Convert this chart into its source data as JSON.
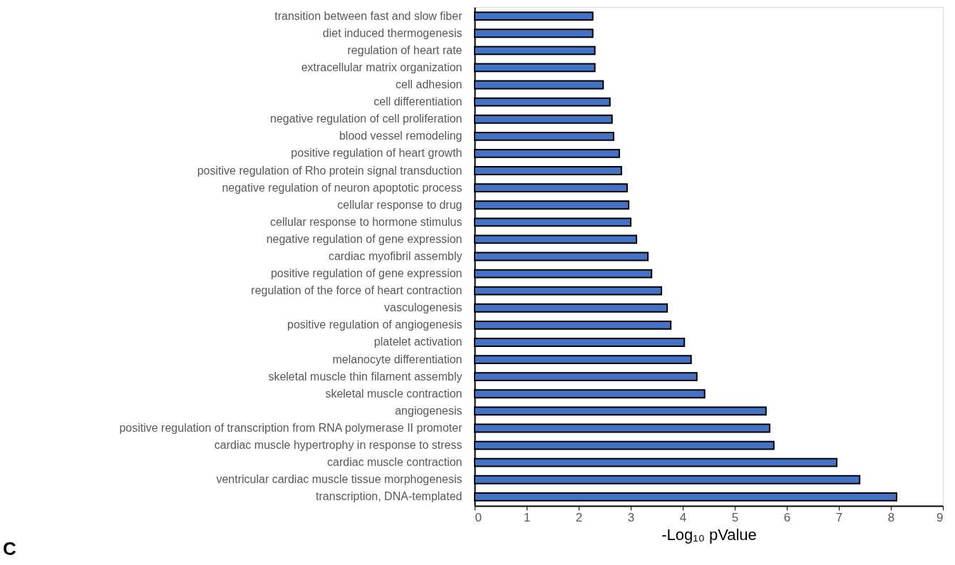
{
  "chart_data": {
    "type": "bar",
    "orientation": "horizontal",
    "xlabel": "-Log₁₀ pValue",
    "categories": [
      "transition between fast and slow fiber",
      "diet induced thermogenesis",
      "regulation of heart rate",
      "extracellular matrix organization",
      "cell adhesion",
      "cell differentiation",
      "negative regulation of cell proliferation",
      "blood vessel remodeling",
      "positive regulation of heart growth",
      "positive regulation of Rho protein signal transduction",
      "negative regulation of neuron apoptotic process",
      "cellular response to drug",
      "cellular response to hormone stimulus",
      "negative regulation of gene expression",
      "cardiac myofibril assembly",
      "positive regulation of gene expression",
      "regulation of the force of heart contraction",
      "vasculogenesis",
      "positive regulation of angiogenesis",
      "platelet activation",
      "melanocyte differentiation",
      "skeletal muscle thin filament assembly",
      "skeletal muscle contraction",
      "angiogenesis",
      "positive regulation of transcription from RNA polymerase II promoter",
      "cardiac muscle hypertrophy in response to stress",
      "cardiac muscle contraction",
      "ventricular cardiac muscle tissue morphogenesis",
      "transcription, DNA-templated"
    ],
    "values": [
      2.27,
      2.27,
      2.31,
      2.31,
      2.47,
      2.6,
      2.64,
      2.67,
      2.78,
      2.82,
      2.93,
      2.96,
      3.0,
      3.11,
      3.33,
      3.4,
      3.59,
      3.7,
      3.77,
      4.03,
      4.16,
      4.27,
      4.42,
      5.6,
      5.67,
      5.75,
      6.96,
      7.4,
      8.11
    ],
    "color": "#4472c4",
    "xlim": [
      0,
      9
    ],
    "xticks": [
      0,
      1,
      2,
      3,
      4,
      5,
      6,
      7,
      8,
      9
    ],
    "grid": false,
    "annotations": [
      "C"
    ]
  }
}
